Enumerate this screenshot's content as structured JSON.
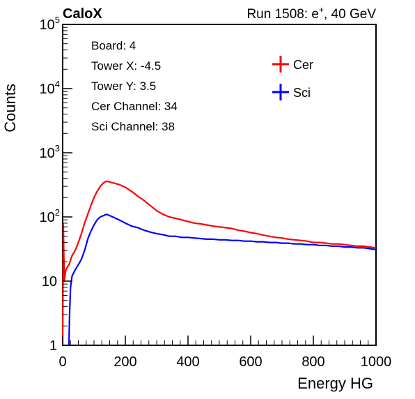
{
  "header": {
    "experiment": "CaloX",
    "run_label": "Run 1508: e",
    "run_sup": "+",
    "run_energy": ", 40 GeV"
  },
  "info_box": {
    "lines": [
      "Board: 4",
      "Tower X: -4.5",
      "Tower Y: 3.5",
      "Cer Channel: 34",
      "Sci Channel: 38"
    ]
  },
  "chart_data": {
    "type": "line",
    "title": "",
    "xlabel": "Energy HG",
    "ylabel": "Counts",
    "xlim": [
      0,
      1000
    ],
    "ylim": [
      1,
      100000
    ],
    "y_scale": "log",
    "x_ticks": [
      0,
      200,
      400,
      600,
      800,
      1000
    ],
    "y_ticks": [
      {
        "value": 1,
        "base": "1",
        "exp": ""
      },
      {
        "value": 10,
        "base": "10",
        "exp": ""
      },
      {
        "value": 100,
        "base": "10",
        "exp": "2"
      },
      {
        "value": 1000,
        "base": "10",
        "exp": "3"
      },
      {
        "value": 10000,
        "base": "10",
        "exp": "4"
      },
      {
        "value": 100000,
        "base": "10",
        "exp": "5"
      }
    ],
    "grid": false,
    "legend_position": "top-right",
    "series": [
      {
        "name": "Cer",
        "color": "#ff0000",
        "points": [
          [
            0,
            1
          ],
          [
            2,
            80
          ],
          [
            5,
            10
          ],
          [
            10,
            15
          ],
          [
            20,
            18
          ],
          [
            30,
            25
          ],
          [
            40,
            30
          ],
          [
            50,
            40
          ],
          [
            60,
            55
          ],
          [
            70,
            80
          ],
          [
            80,
            110
          ],
          [
            90,
            150
          ],
          [
            100,
            200
          ],
          [
            110,
            250
          ],
          [
            120,
            300
          ],
          [
            130,
            340
          ],
          [
            140,
            360
          ],
          [
            150,
            350
          ],
          [
            160,
            340
          ],
          [
            170,
            330
          ],
          [
            180,
            320
          ],
          [
            200,
            290
          ],
          [
            220,
            250
          ],
          [
            240,
            210
          ],
          [
            260,
            180
          ],
          [
            280,
            150
          ],
          [
            300,
            125
          ],
          [
            320,
            110
          ],
          [
            340,
            100
          ],
          [
            360,
            95
          ],
          [
            380,
            90
          ],
          [
            400,
            85
          ],
          [
            420,
            80
          ],
          [
            440,
            78
          ],
          [
            460,
            75
          ],
          [
            480,
            72
          ],
          [
            500,
            70
          ],
          [
            520,
            68
          ],
          [
            540,
            66
          ],
          [
            560,
            62
          ],
          [
            580,
            60
          ],
          [
            600,
            57
          ],
          [
            620,
            55
          ],
          [
            640,
            52
          ],
          [
            660,
            50
          ],
          [
            680,
            48
          ],
          [
            700,
            47
          ],
          [
            720,
            45
          ],
          [
            740,
            44
          ],
          [
            760,
            43
          ],
          [
            780,
            42
          ],
          [
            800,
            40
          ],
          [
            820,
            40
          ],
          [
            840,
            39
          ],
          [
            860,
            38
          ],
          [
            880,
            38
          ],
          [
            900,
            37
          ],
          [
            920,
            36
          ],
          [
            940,
            35
          ],
          [
            960,
            35
          ],
          [
            980,
            34
          ],
          [
            1000,
            33
          ]
        ]
      },
      {
        "name": "Sci",
        "color": "#0000ff",
        "points": [
          [
            20,
            1
          ],
          [
            22,
            3
          ],
          [
            25,
            8
          ],
          [
            30,
            12
          ],
          [
            40,
            15
          ],
          [
            50,
            18
          ],
          [
            60,
            22
          ],
          [
            70,
            30
          ],
          [
            80,
            45
          ],
          [
            90,
            60
          ],
          [
            100,
            75
          ],
          [
            110,
            90
          ],
          [
            120,
            100
          ],
          [
            130,
            105
          ],
          [
            140,
            110
          ],
          [
            150,
            105
          ],
          [
            160,
            100
          ],
          [
            180,
            90
          ],
          [
            200,
            80
          ],
          [
            220,
            72
          ],
          [
            240,
            68
          ],
          [
            260,
            62
          ],
          [
            280,
            58
          ],
          [
            300,
            55
          ],
          [
            320,
            53
          ],
          [
            340,
            50
          ],
          [
            360,
            50
          ],
          [
            380,
            48
          ],
          [
            400,
            48
          ],
          [
            420,
            47
          ],
          [
            440,
            46
          ],
          [
            460,
            45
          ],
          [
            480,
            45
          ],
          [
            500,
            44
          ],
          [
            520,
            44
          ],
          [
            540,
            43
          ],
          [
            560,
            43
          ],
          [
            580,
            42
          ],
          [
            600,
            42
          ],
          [
            620,
            41
          ],
          [
            640,
            41
          ],
          [
            660,
            40
          ],
          [
            680,
            40
          ],
          [
            700,
            39
          ],
          [
            720,
            39
          ],
          [
            740,
            38
          ],
          [
            760,
            38
          ],
          [
            780,
            37
          ],
          [
            800,
            37
          ],
          [
            820,
            36
          ],
          [
            840,
            36
          ],
          [
            860,
            35
          ],
          [
            880,
            35
          ],
          [
            900,
            34
          ],
          [
            920,
            34
          ],
          [
            940,
            33
          ],
          [
            960,
            33
          ],
          [
            980,
            32
          ],
          [
            1000,
            31
          ]
        ]
      }
    ]
  }
}
